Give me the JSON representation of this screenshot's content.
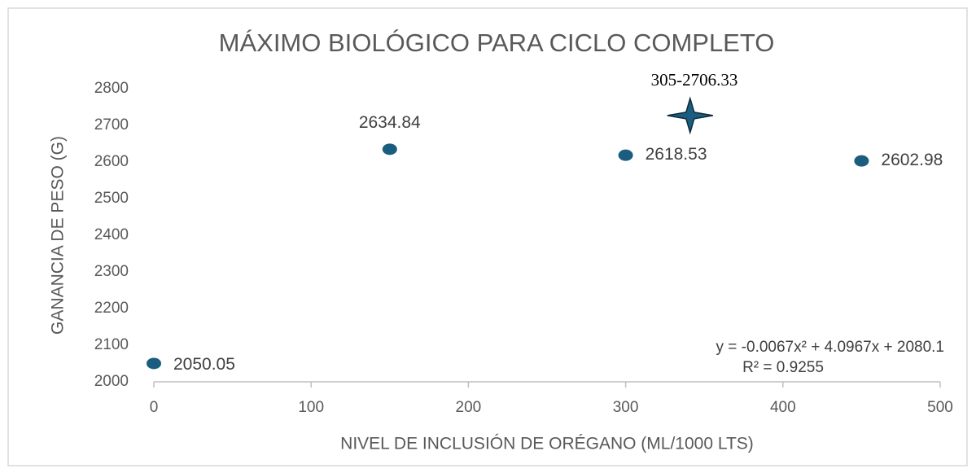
{
  "chart_data": {
    "type": "scatter",
    "title": "MÁXIMO BIOLÓGICO PARA CICLO COMPLETO",
    "x_label": "NIVEL DE INCLUSIÓN DE ORÉGANO  (ML/1000 LTS)",
    "y_label": "GANANCIA DE PESO (G)",
    "series": [
      {
        "color": "#1b5d7e",
        "x": [
          0,
          150,
          300,
          450
        ],
        "values": [
          2050.05,
          2634.84,
          2618.53,
          2602.98
        ]
      }
    ],
    "trendline": {
      "equation": "y = -0.0067x² + 4.0967x + 2080.1",
      "r_squared": "R² = 0.9255",
      "style": "dotted"
    },
    "annotation": {
      "text": "305-2706.33",
      "x": 341,
      "y": 2727,
      "marker": "star"
    },
    "xlim": [
      0,
      500
    ],
    "xticks": [
      0,
      100,
      200,
      300,
      400,
      500
    ],
    "ylim": [
      2000,
      2800
    ],
    "yticks": [
      2000,
      2100,
      2200,
      2300,
      2400,
      2500,
      2600,
      2700,
      2800
    ],
    "grid": false
  }
}
